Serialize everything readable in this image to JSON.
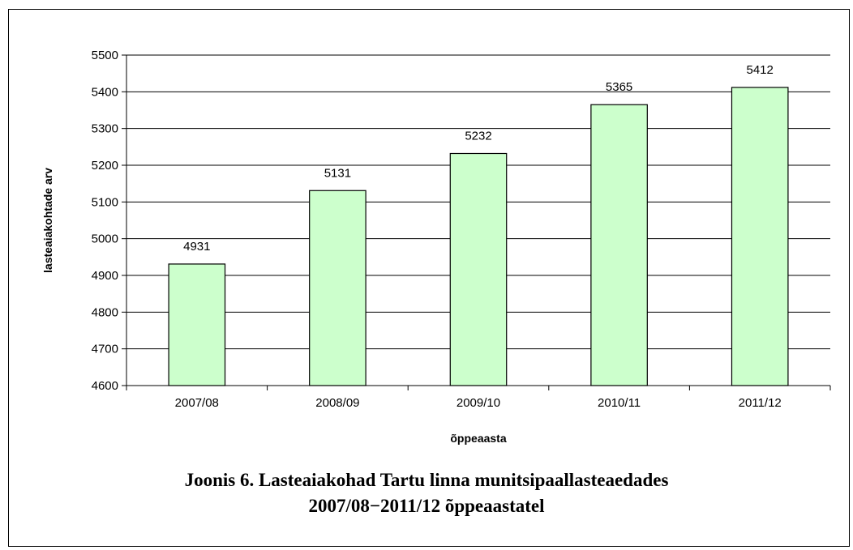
{
  "chart_data": {
    "type": "bar",
    "categories": [
      "2007/08",
      "2008/09",
      "2009/10",
      "2010/11",
      "2011/12"
    ],
    "values": [
      4931,
      5131,
      5232,
      5365,
      5412
    ],
    "data_labels": [
      "4931",
      "5131",
      "5232",
      "5365",
      "5412"
    ],
    "xlabel": "õppeaasta",
    "ylabel": "lasteaiakohtade arv",
    "ylim": [
      4600,
      5500
    ],
    "yticks": [
      4600,
      4700,
      4800,
      4900,
      5000,
      5100,
      5200,
      5300,
      5400,
      5500
    ],
    "grid": true,
    "legend": "none",
    "colors": {
      "bar_fill": "#ccffcc",
      "bar_stroke": "#000000",
      "grid": "#000000"
    }
  },
  "caption": {
    "line1": "Joonis 6. Lasteaiakohad Tartu linna munitsipaallasteaedades",
    "line2": "2007/08−2011/12 õppeaastatel"
  }
}
